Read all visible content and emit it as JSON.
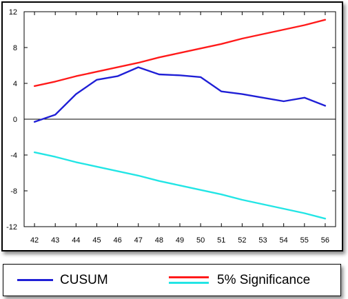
{
  "chart_data": {
    "type": "line",
    "title": "",
    "xlabel": "",
    "ylabel": "",
    "x": [
      42,
      43,
      44,
      45,
      46,
      47,
      48,
      49,
      50,
      51,
      52,
      53,
      54,
      55,
      56
    ],
    "xlim": [
      41.5,
      56.5
    ],
    "ylim": [
      -12,
      12
    ],
    "yticks": [
      -12,
      -8,
      -4,
      0,
      4,
      8,
      12
    ],
    "grid": false,
    "legend_position": "bottom",
    "series": [
      {
        "name": "CUSUM",
        "color": "#1f1fd6",
        "values": [
          -0.3,
          0.5,
          2.8,
          4.4,
          4.8,
          5.8,
          5.0,
          4.9,
          4.7,
          3.1,
          2.8,
          2.4,
          2.0,
          2.4,
          1.5
        ]
      },
      {
        "name": "5% Significance",
        "color": "#ff1a1a",
        "values": [
          3.7,
          4.2,
          4.8,
          5.3,
          5.8,
          6.3,
          6.9,
          7.4,
          7.9,
          8.4,
          9.0,
          9.5,
          10.0,
          10.5,
          11.1
        ]
      },
      {
        "name": "5% Significance",
        "color": "#22e5e5",
        "legend": false,
        "values": [
          -3.7,
          -4.2,
          -4.8,
          -5.3,
          -5.8,
          -6.3,
          -6.9,
          -7.4,
          -7.9,
          -8.4,
          -9.0,
          -9.5,
          -10.0,
          -10.5,
          -11.1
        ]
      }
    ]
  },
  "legend": {
    "items": [
      {
        "label": "CUSUM",
        "color": "#1f1fd6"
      },
      {
        "label": "5% Significance",
        "color": "#ff1a1a",
        "color2": "#22e5e5"
      }
    ]
  }
}
